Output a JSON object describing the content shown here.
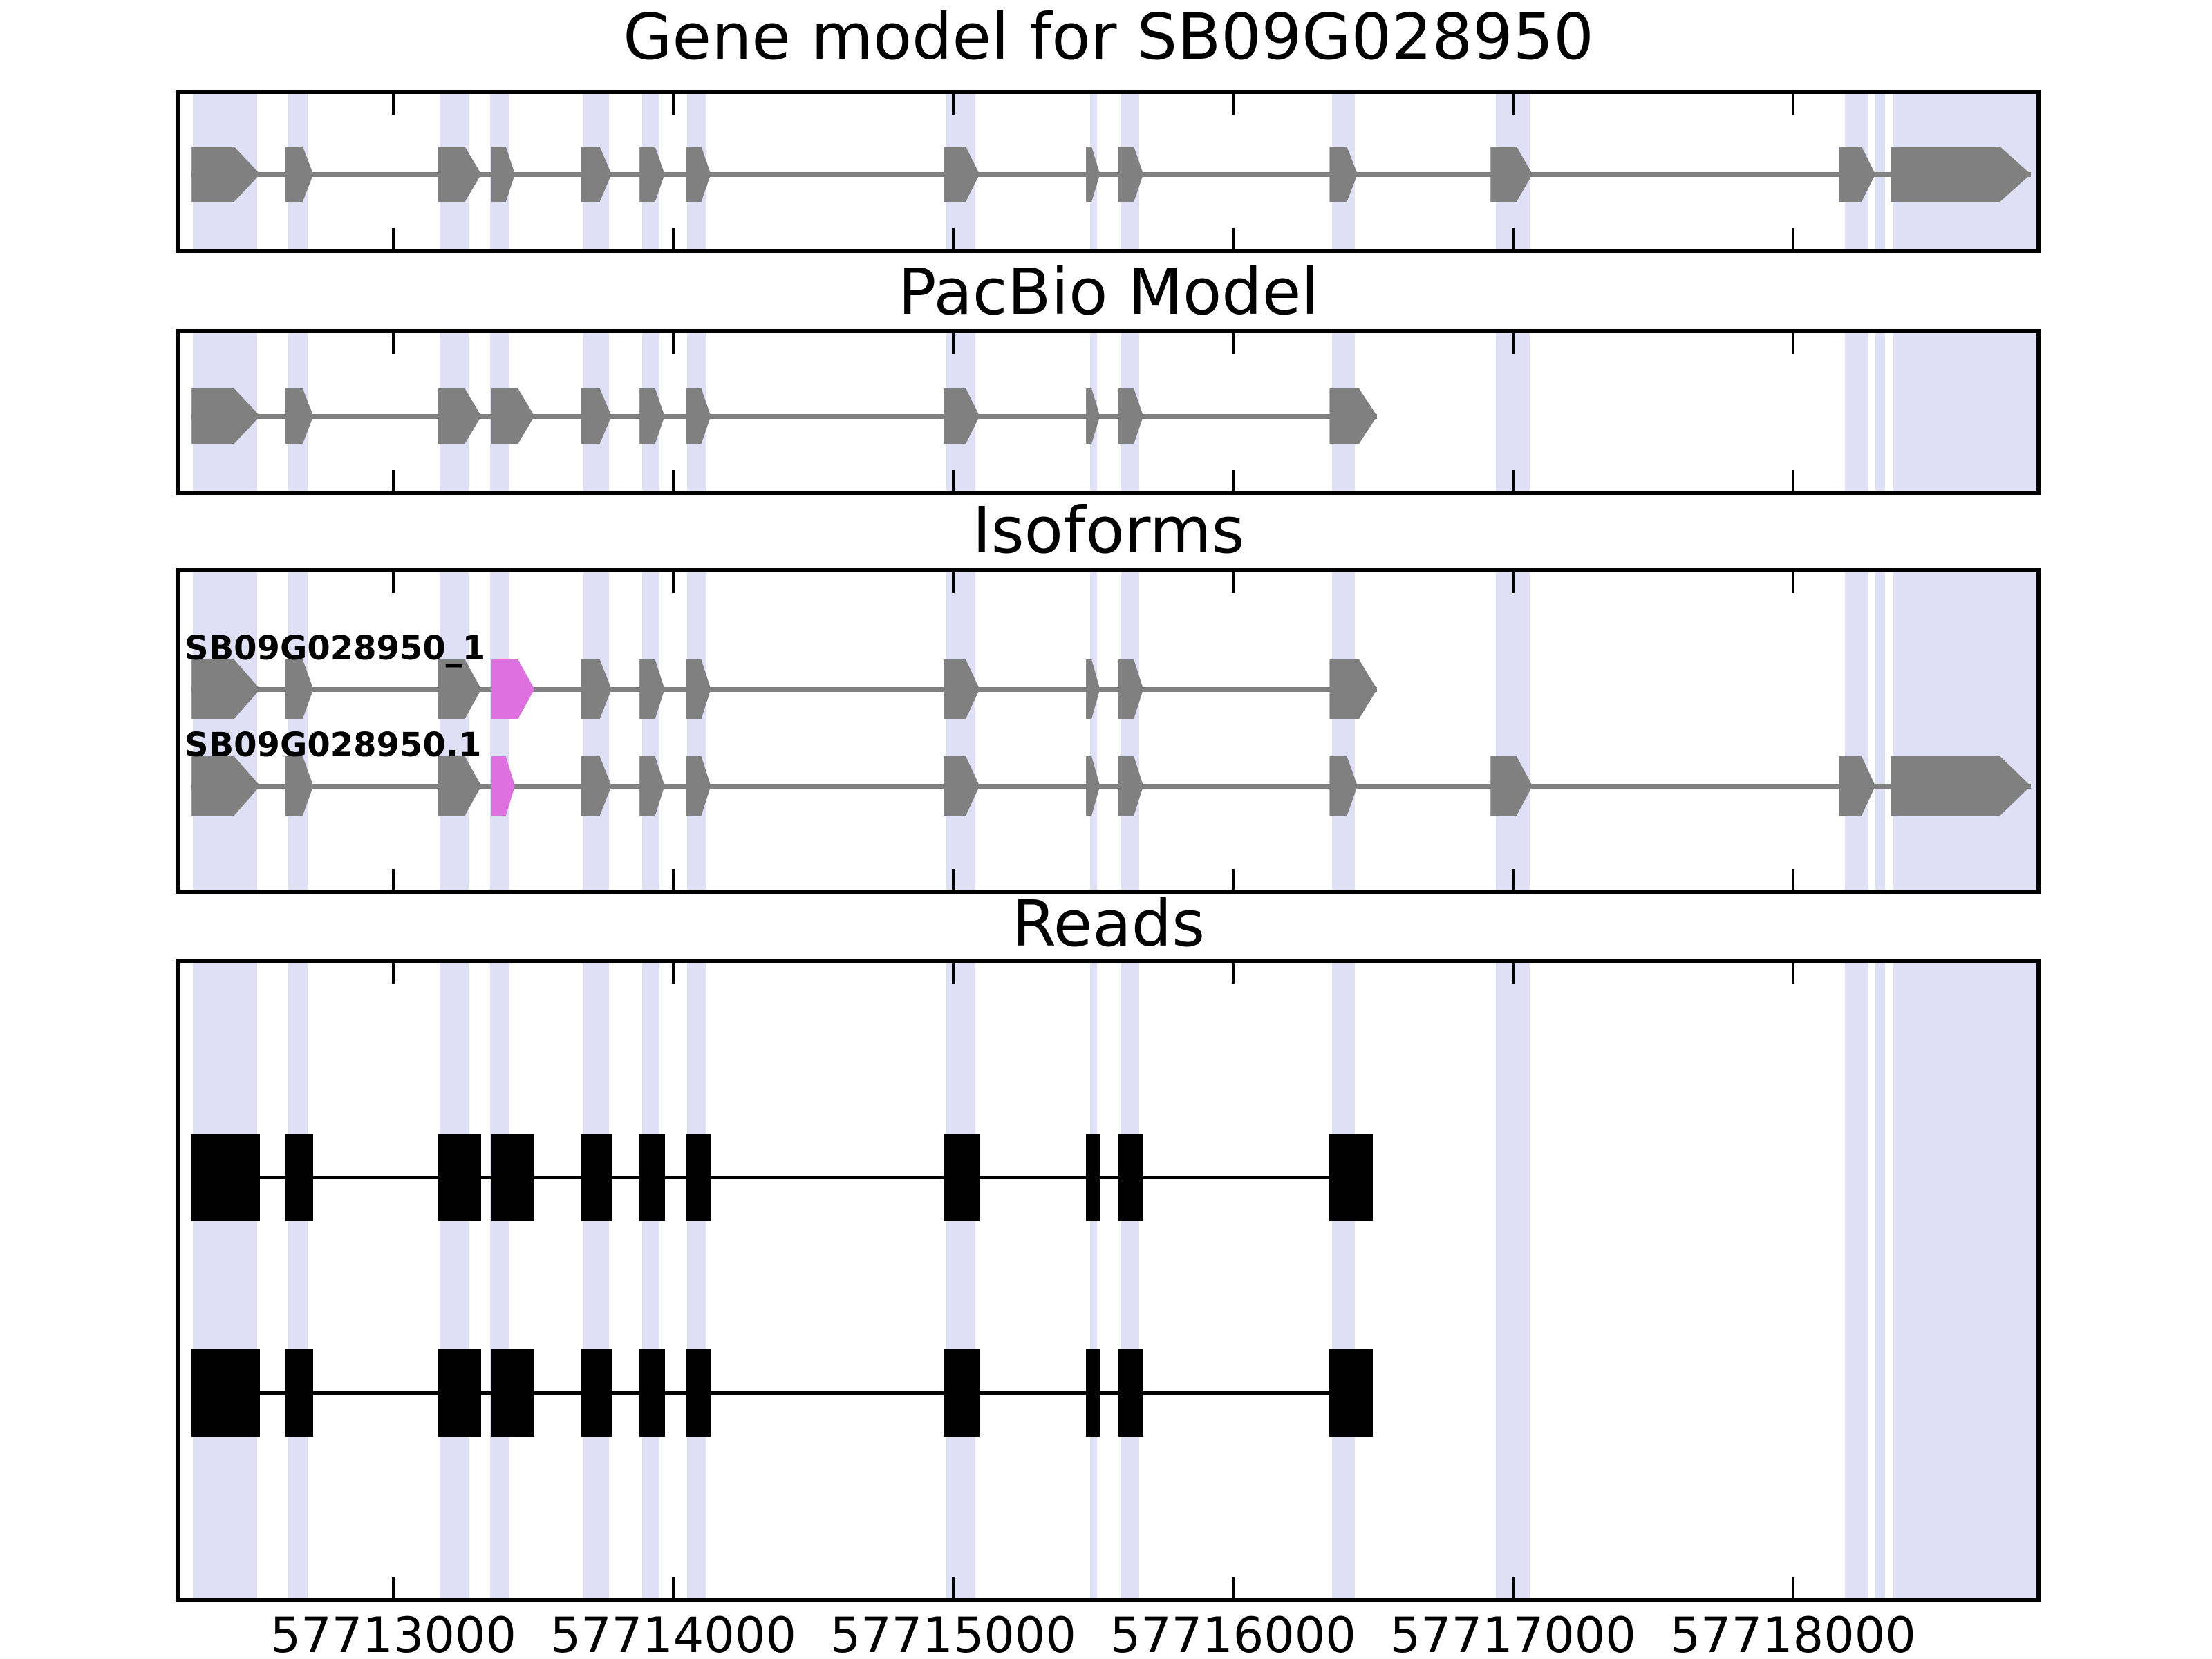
{
  "colors": {
    "exon_gray": "#808080",
    "intron_line_gray": "#808080",
    "read_black": "#000000",
    "highlight_exon": "#DE70E0",
    "band_lavender": "#DFDFF5",
    "panel_border": "#000000",
    "text": "#000000",
    "background": "#ffffff"
  },
  "chart_data": {
    "type": "gene-model-tracks",
    "gene_id": "SB09G028950",
    "x_axis": {
      "start": 57712240,
      "end": 57718870,
      "ticks": [
        57713000,
        57714000,
        57715000,
        57716000,
        57717000,
        57718000
      ],
      "tick_labels": [
        "57713000",
        "57714000",
        "57715000",
        "57716000",
        "57717000",
        "57718000"
      ],
      "tick_direction": "in",
      "grid": false
    },
    "highlight_bands": [
      [
        57712285,
        57712515
      ],
      [
        57712625,
        57712695
      ],
      [
        57713165,
        57713270
      ],
      [
        57713345,
        57713415
      ],
      [
        57713680,
        57713770
      ],
      [
        57713890,
        57713950
      ],
      [
        57714050,
        57714120
      ],
      [
        57714975,
        57715080
      ],
      [
        57715490,
        57715515
      ],
      [
        57715600,
        57715665
      ],
      [
        57716355,
        57716435
      ],
      [
        57716940,
        57717060
      ],
      [
        57718185,
        57718270
      ],
      [
        57718295,
        57718330
      ],
      [
        57718360,
        57718870
      ]
    ],
    "tracks": [
      {
        "name": "gene-model",
        "title": "Gene model for SB09G028950",
        "rows": [
          {
            "label": "",
            "style": "model",
            "color": "gray",
            "line": [
              57712280,
              57718850
            ],
            "exons": [
              {
                "start": 57712280,
                "end": 57712525,
                "shape": "arrow",
                "color": "gray"
              },
              {
                "start": 57712615,
                "end": 57712715,
                "shape": "arrow",
                "color": "gray"
              },
              {
                "start": 57713160,
                "end": 57713315,
                "shape": "arrow",
                "color": "gray"
              },
              {
                "start": 57713350,
                "end": 57713435,
                "shape": "arrow",
                "color": "gray"
              },
              {
                "start": 57713670,
                "end": 57713780,
                "shape": "arrow",
                "color": "gray"
              },
              {
                "start": 57713880,
                "end": 57713970,
                "shape": "arrow",
                "color": "gray"
              },
              {
                "start": 57714045,
                "end": 57714135,
                "shape": "arrow",
                "color": "gray"
              },
              {
                "start": 57714965,
                "end": 57715095,
                "shape": "arrow",
                "color": "gray"
              },
              {
                "start": 57715475,
                "end": 57715525,
                "shape": "arrow",
                "color": "gray"
              },
              {
                "start": 57715590,
                "end": 57715680,
                "shape": "arrow",
                "color": "gray"
              },
              {
                "start": 57716345,
                "end": 57716445,
                "shape": "arrow",
                "color": "gray"
              },
              {
                "start": 57716920,
                "end": 57717070,
                "shape": "arrow",
                "color": "gray"
              },
              {
                "start": 57718165,
                "end": 57718295,
                "shape": "arrow",
                "color": "gray"
              },
              {
                "start": 57718350,
                "end": 57718850,
                "shape": "arrow",
                "color": "gray"
              }
            ]
          }
        ]
      },
      {
        "name": "pacbio-model",
        "title": "PacBio Model",
        "rows": [
          {
            "label": "",
            "style": "model",
            "color": "gray",
            "line": [
              57712280,
              57716515
            ],
            "exons": [
              {
                "start": 57712280,
                "end": 57712525,
                "shape": "arrow",
                "color": "gray"
              },
              {
                "start": 57712615,
                "end": 57712715,
                "shape": "arrow",
                "color": "gray"
              },
              {
                "start": 57713160,
                "end": 57713315,
                "shape": "arrow",
                "color": "gray"
              },
              {
                "start": 57713350,
                "end": 57713505,
                "shape": "arrow",
                "color": "gray"
              },
              {
                "start": 57713670,
                "end": 57713780,
                "shape": "arrow",
                "color": "gray"
              },
              {
                "start": 57713880,
                "end": 57713970,
                "shape": "arrow",
                "color": "gray"
              },
              {
                "start": 57714045,
                "end": 57714135,
                "shape": "arrow",
                "color": "gray"
              },
              {
                "start": 57714965,
                "end": 57715095,
                "shape": "arrow",
                "color": "gray"
              },
              {
                "start": 57715475,
                "end": 57715525,
                "shape": "arrow",
                "color": "gray"
              },
              {
                "start": 57715590,
                "end": 57715680,
                "shape": "arrow",
                "color": "gray"
              },
              {
                "start": 57716345,
                "end": 57716515,
                "shape": "arrow",
                "color": "gray"
              }
            ]
          }
        ]
      },
      {
        "name": "isoforms",
        "title": "Isoforms",
        "rows": [
          {
            "label": "SB09G028950_1",
            "style": "model",
            "color": "gray",
            "line": [
              57712280,
              57716515
            ],
            "exons": [
              {
                "start": 57712280,
                "end": 57712525,
                "shape": "arrow",
                "color": "gray"
              },
              {
                "start": 57712615,
                "end": 57712715,
                "shape": "arrow",
                "color": "gray"
              },
              {
                "start": 57713160,
                "end": 57713315,
                "shape": "arrow",
                "color": "gray"
              },
              {
                "start": 57713350,
                "end": 57713505,
                "shape": "arrow",
                "color": "highlight"
              },
              {
                "start": 57713670,
                "end": 57713780,
                "shape": "arrow",
                "color": "gray"
              },
              {
                "start": 57713880,
                "end": 57713970,
                "shape": "arrow",
                "color": "gray"
              },
              {
                "start": 57714045,
                "end": 57714135,
                "shape": "arrow",
                "color": "gray"
              },
              {
                "start": 57714965,
                "end": 57715095,
                "shape": "arrow",
                "color": "gray"
              },
              {
                "start": 57715475,
                "end": 57715525,
                "shape": "arrow",
                "color": "gray"
              },
              {
                "start": 57715590,
                "end": 57715680,
                "shape": "arrow",
                "color": "gray"
              },
              {
                "start": 57716345,
                "end": 57716515,
                "shape": "arrow",
                "color": "gray"
              }
            ]
          },
          {
            "label": "SB09G028950.1",
            "style": "model",
            "color": "gray",
            "line": [
              57712280,
              57718850
            ],
            "exons": [
              {
                "start": 57712280,
                "end": 57712525,
                "shape": "arrow",
                "color": "gray"
              },
              {
                "start": 57712615,
                "end": 57712715,
                "shape": "arrow",
                "color": "gray"
              },
              {
                "start": 57713160,
                "end": 57713315,
                "shape": "arrow",
                "color": "gray"
              },
              {
                "start": 57713350,
                "end": 57713435,
                "shape": "arrow",
                "color": "highlight"
              },
              {
                "start": 57713670,
                "end": 57713780,
                "shape": "arrow",
                "color": "gray"
              },
              {
                "start": 57713880,
                "end": 57713970,
                "shape": "arrow",
                "color": "gray"
              },
              {
                "start": 57714045,
                "end": 57714135,
                "shape": "arrow",
                "color": "gray"
              },
              {
                "start": 57714965,
                "end": 57715095,
                "shape": "arrow",
                "color": "gray"
              },
              {
                "start": 57715475,
                "end": 57715525,
                "shape": "arrow",
                "color": "gray"
              },
              {
                "start": 57715590,
                "end": 57715680,
                "shape": "arrow",
                "color": "gray"
              },
              {
                "start": 57716345,
                "end": 57716445,
                "shape": "arrow",
                "color": "gray"
              },
              {
                "start": 57716920,
                "end": 57717070,
                "shape": "arrow",
                "color": "gray"
              },
              {
                "start": 57718165,
                "end": 57718295,
                "shape": "arrow",
                "color": "gray"
              },
              {
                "start": 57718350,
                "end": 57718850,
                "shape": "arrow",
                "color": "gray"
              }
            ]
          }
        ]
      },
      {
        "name": "reads",
        "title": "Reads",
        "rows": [
          {
            "label": "",
            "style": "reads",
            "color": "black",
            "line": [
              57712280,
              57716500
            ],
            "exons": [
              {
                "start": 57712280,
                "end": 57712525,
                "shape": "rect",
                "color": "black"
              },
              {
                "start": 57712615,
                "end": 57712715,
                "shape": "rect",
                "color": "black"
              },
              {
                "start": 57713160,
                "end": 57713315,
                "shape": "rect",
                "color": "black"
              },
              {
                "start": 57713350,
                "end": 57713505,
                "shape": "rect",
                "color": "black"
              },
              {
                "start": 57713670,
                "end": 57713780,
                "shape": "rect",
                "color": "black"
              },
              {
                "start": 57713880,
                "end": 57713970,
                "shape": "rect",
                "color": "black"
              },
              {
                "start": 57714045,
                "end": 57714135,
                "shape": "rect",
                "color": "black"
              },
              {
                "start": 57714965,
                "end": 57715095,
                "shape": "rect",
                "color": "black"
              },
              {
                "start": 57715475,
                "end": 57715525,
                "shape": "rect",
                "color": "black"
              },
              {
                "start": 57715590,
                "end": 57715680,
                "shape": "rect",
                "color": "black"
              },
              {
                "start": 57716345,
                "end": 57716500,
                "shape": "rect",
                "color": "black"
              }
            ]
          },
          {
            "label": "",
            "style": "reads",
            "color": "black",
            "line": [
              57712280,
              57716500
            ],
            "exons": [
              {
                "start": 57712280,
                "end": 57712525,
                "shape": "rect",
                "color": "black"
              },
              {
                "start": 57712615,
                "end": 57712715,
                "shape": "rect",
                "color": "black"
              },
              {
                "start": 57713160,
                "end": 57713315,
                "shape": "rect",
                "color": "black"
              },
              {
                "start": 57713350,
                "end": 57713505,
                "shape": "rect",
                "color": "black"
              },
              {
                "start": 57713670,
                "end": 57713780,
                "shape": "rect",
                "color": "black"
              },
              {
                "start": 57713880,
                "end": 57713970,
                "shape": "rect",
                "color": "black"
              },
              {
                "start": 57714045,
                "end": 57714135,
                "shape": "rect",
                "color": "black"
              },
              {
                "start": 57714965,
                "end": 57715095,
                "shape": "rect",
                "color": "black"
              },
              {
                "start": 57715475,
                "end": 57715525,
                "shape": "rect",
                "color": "black"
              },
              {
                "start": 57715590,
                "end": 57715680,
                "shape": "rect",
                "color": "black"
              },
              {
                "start": 57716345,
                "end": 57716500,
                "shape": "rect",
                "color": "black"
              }
            ]
          }
        ]
      }
    ]
  }
}
